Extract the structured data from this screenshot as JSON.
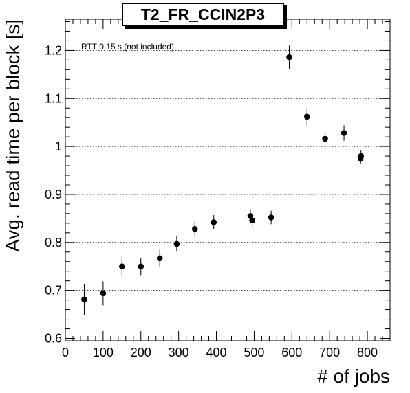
{
  "chart_data": {
    "type": "scatter",
    "title": "T2_FR_CCIN2P3",
    "xlabel": "# of jobs",
    "ylabel": "Avg. read time per block [s]",
    "annotation": "RTT 0.15 s (not included)",
    "xlim": [
      0,
      860
    ],
    "ylim": [
      0.595,
      1.265
    ],
    "x_ticks": [
      0,
      100,
      200,
      300,
      400,
      500,
      600,
      700,
      800
    ],
    "x_tick_labels": [
      "0",
      "100",
      "200",
      "300",
      "400",
      "500",
      "600",
      "700",
      "800"
    ],
    "y_ticks": [
      0.6,
      0.7,
      0.8,
      0.9,
      1.0,
      1.1,
      1.2
    ],
    "y_tick_labels": [
      "0.6",
      "0.7",
      "0.8",
      "0.9",
      "1",
      "1.1",
      "1.2"
    ],
    "grid": "y-dotted",
    "points": [
      {
        "x": 50,
        "y": 0.681,
        "err": 0.033
      },
      {
        "x": 100,
        "y": 0.694,
        "err": 0.025
      },
      {
        "x": 150,
        "y": 0.75,
        "err": 0.021
      },
      {
        "x": 200,
        "y": 0.75,
        "err": 0.018
      },
      {
        "x": 250,
        "y": 0.767,
        "err": 0.018
      },
      {
        "x": 295,
        "y": 0.797,
        "err": 0.016
      },
      {
        "x": 343,
        "y": 0.828,
        "err": 0.016
      },
      {
        "x": 393,
        "y": 0.842,
        "err": 0.015
      },
      {
        "x": 490,
        "y": 0.855,
        "err": 0.015
      },
      {
        "x": 495,
        "y": 0.846,
        "err": 0.015
      },
      {
        "x": 545,
        "y": 0.852,
        "err": 0.014
      },
      {
        "x": 593,
        "y": 1.186,
        "err": 0.024
      },
      {
        "x": 640,
        "y": 1.062,
        "err": 0.018
      },
      {
        "x": 688,
        "y": 1.016,
        "err": 0.016
      },
      {
        "x": 738,
        "y": 1.028,
        "err": 0.016
      },
      {
        "x": 782,
        "y": 0.975,
        "err": 0.012
      },
      {
        "x": 783,
        "y": 0.98,
        "err": 0.012
      }
    ]
  }
}
